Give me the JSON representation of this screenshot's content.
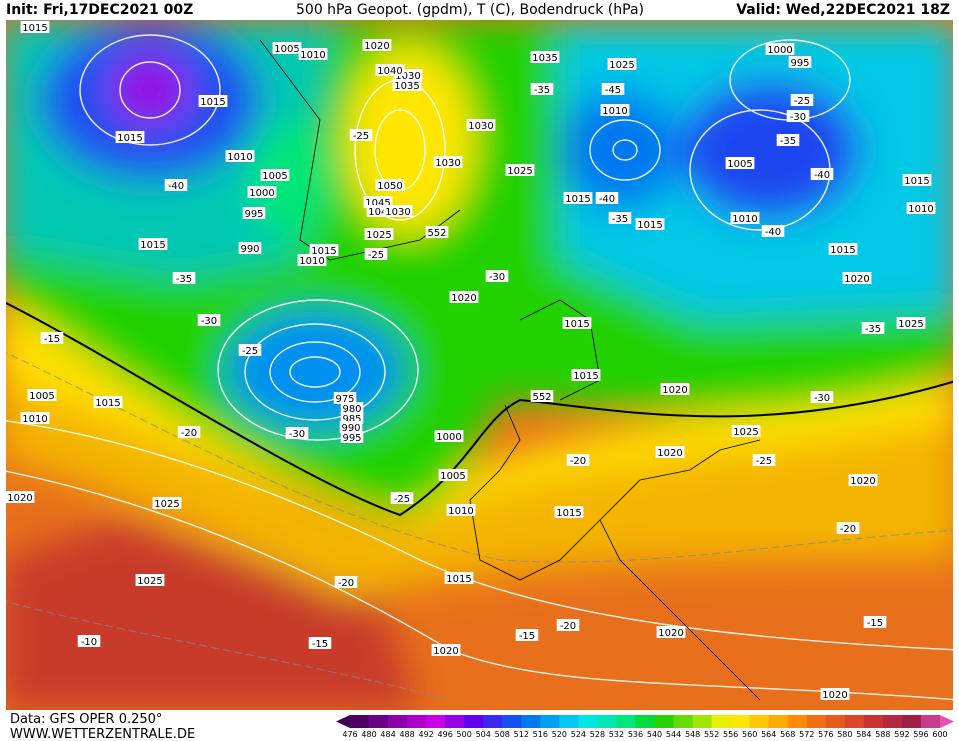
{
  "header": {
    "init": "Init: Fri,17DEC2021 00Z",
    "title": "500 hPa Geopot. (gpdm), T (C), Bodendruck (hPa)",
    "valid": "Valid: Wed,22DEC2021 18Z"
  },
  "footer": {
    "source": "Data: GFS OPER 0.250°",
    "site": "WWW.WETTERZENTRALE.DE"
  },
  "legend": {
    "levels": [
      476,
      480,
      484,
      488,
      492,
      496,
      500,
      504,
      508,
      512,
      516,
      520,
      524,
      528,
      532,
      536,
      540,
      544,
      548,
      552,
      556,
      560,
      564,
      568,
      572,
      576,
      580,
      584,
      588,
      592,
      596,
      600
    ],
    "colors": [
      "#500064",
      "#6a0082",
      "#8c00aa",
      "#aa00c8",
      "#c800e6",
      "#9600e6",
      "#6400f0",
      "#3c28f0",
      "#1450f0",
      "#0078f0",
      "#00a0f0",
      "#00c8f0",
      "#00e6e6",
      "#00e6b4",
      "#00e678",
      "#00dc3c",
      "#28d200",
      "#64dc00",
      "#a0e600",
      "#e6f000",
      "#ffe600",
      "#ffc800",
      "#ffaa00",
      "#ff8c00",
      "#f06e14",
      "#e65a1e",
      "#dc4628",
      "#c83232",
      "#b4283c",
      "#a01e46",
      "#c83c8c",
      "#e650b4"
    ]
  },
  "map_labels": [
    "1015",
    "1005",
    "1010",
    "1020",
    "1015",
    "1015",
    "1010",
    "1005",
    "1000",
    "995",
    "990",
    "1015",
    "-40",
    "-35",
    "-30",
    "-25",
    "-15",
    "1005",
    "1010",
    "1015",
    "-20",
    "-30",
    "975",
    "980",
    "985",
    "990",
    "995",
    "1000",
    "1005",
    "-25",
    "1010",
    "1020",
    "1025",
    "1025",
    "-20",
    "1015",
    "-15",
    "-10",
    "1020",
    "-15",
    "-20",
    "1020",
    "1015",
    "-20",
    "1020",
    "1025",
    "-25",
    "1020",
    "-20",
    "-15",
    "1020",
    "1020",
    "-30",
    "1015",
    "552",
    "1015",
    "1020",
    "-30",
    "1025",
    "552",
    "1015",
    "1010",
    "-25",
    "1045",
    "1040",
    "1030",
    "1050",
    "1030",
    "1030",
    "-25",
    "1035",
    "1030",
    "1040",
    "1035",
    "-35",
    "1025",
    "1025",
    "-45",
    "1010",
    "1015",
    "-40",
    "-35",
    "1015",
    "1005",
    "1010",
    "-40",
    "1015",
    "1020",
    "-35",
    "1025",
    "1000",
    "995",
    "-25",
    "-30",
    "-35",
    "-40",
    "1015",
    "1010"
  ]
}
